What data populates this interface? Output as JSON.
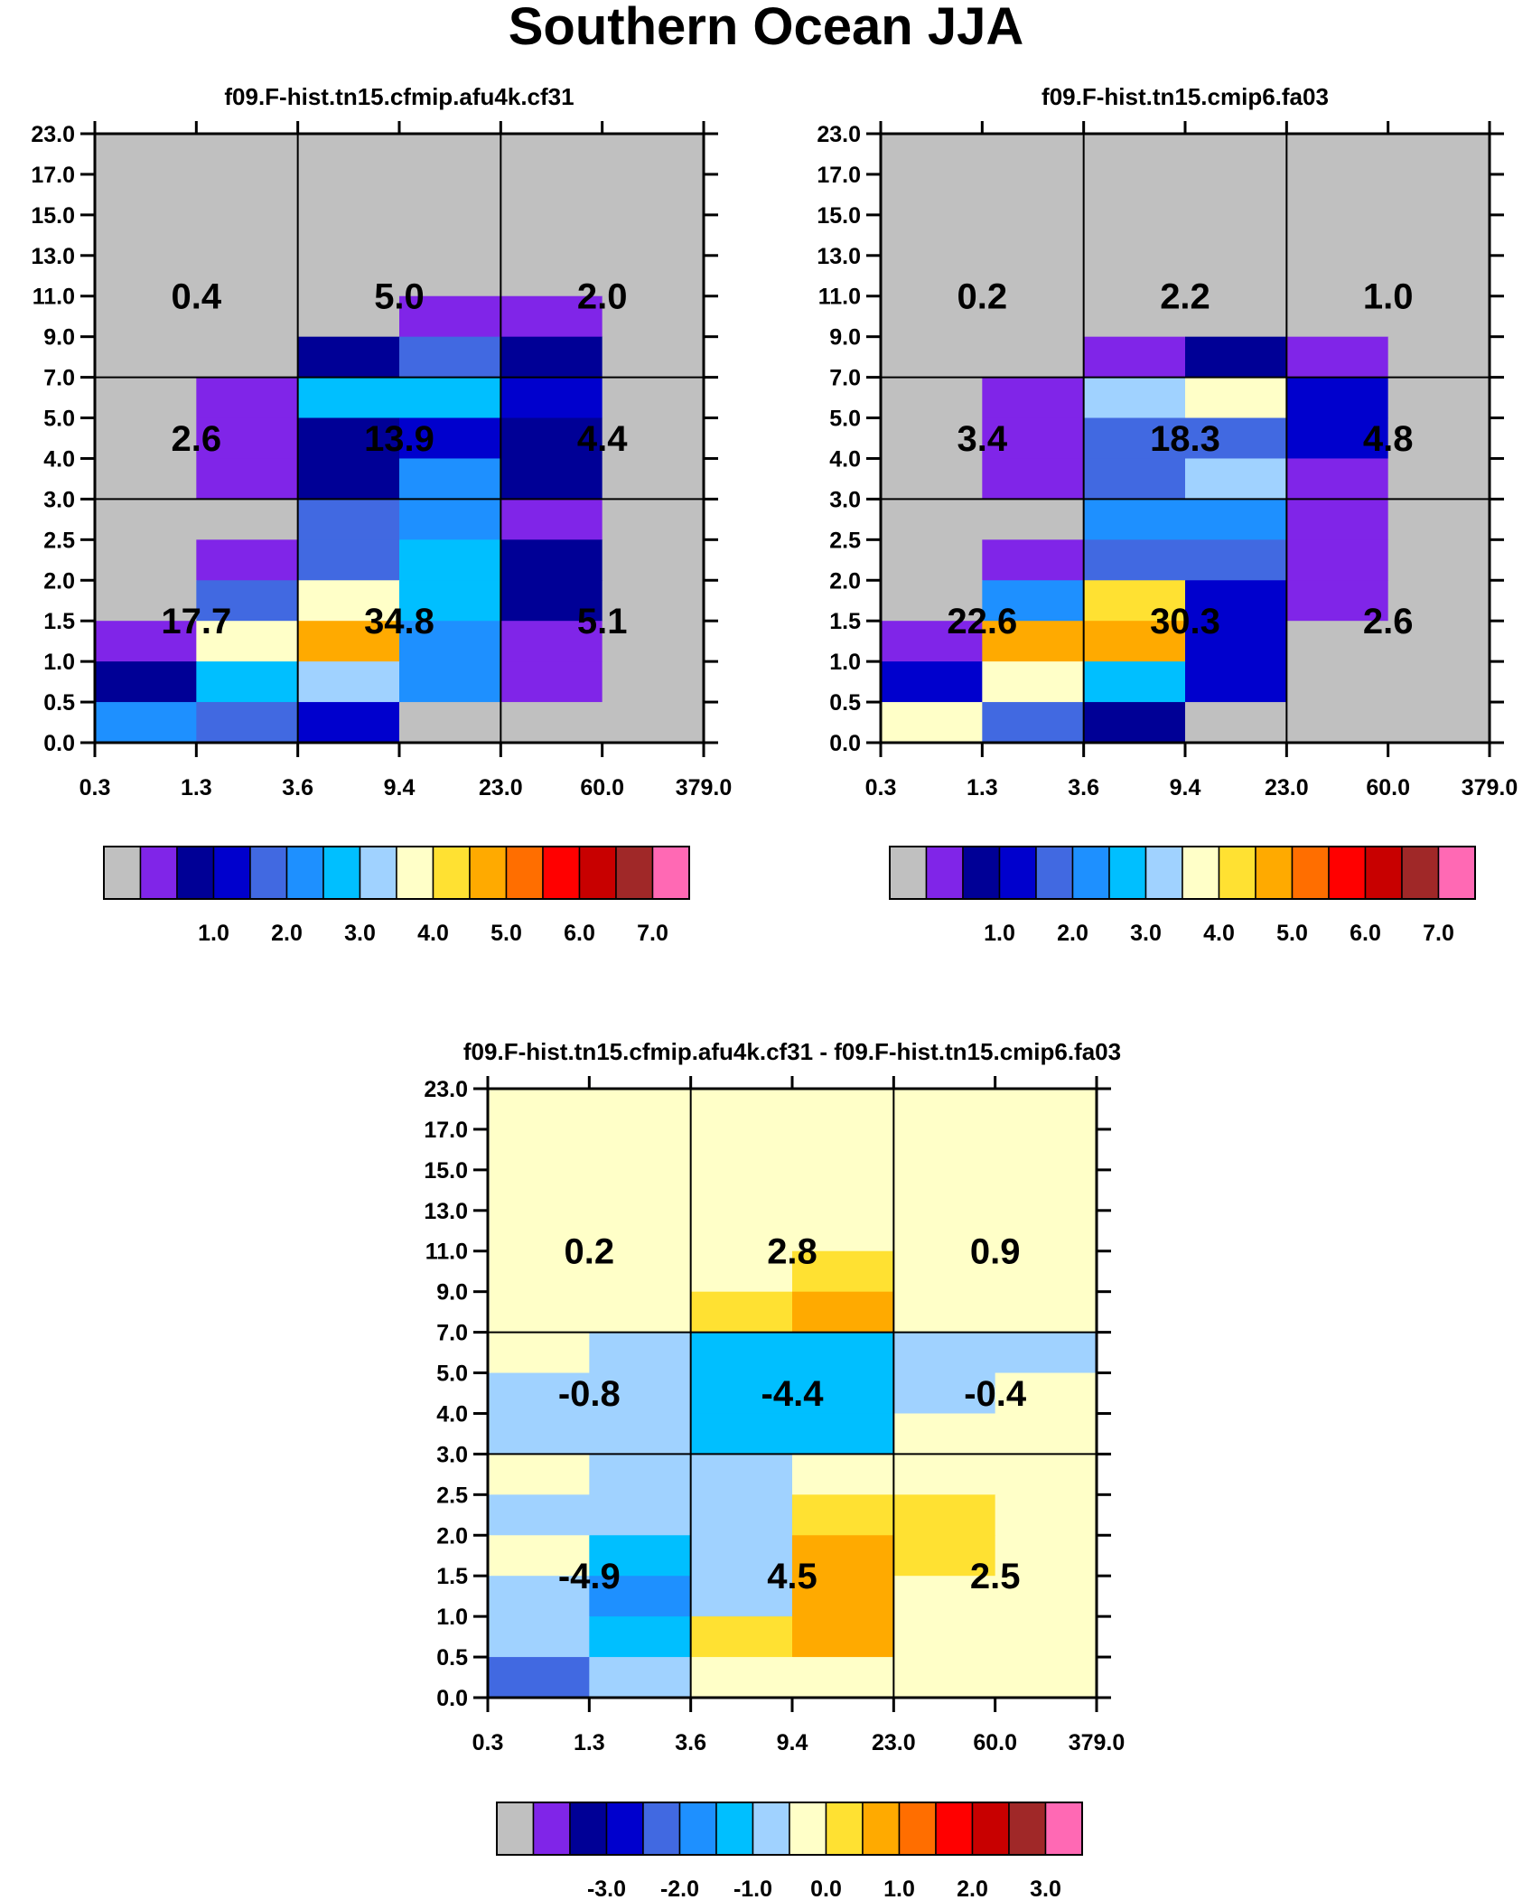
{
  "title": "Southern Ocean JJA",
  "x_ticks": [
    "0.3",
    "1.3",
    "3.6",
    "9.4",
    "23.0",
    "60.0",
    "379.0"
  ],
  "y_ticks": [
    "0.0",
    "0.5",
    "1.0",
    "1.5",
    "2.0",
    "2.5",
    "3.0",
    "4.0",
    "5.0",
    "7.0",
    "9.0",
    "11.0",
    "13.0",
    "15.0",
    "17.0",
    "23.0"
  ],
  "palette": [
    "#c0c0c0",
    "#8025e8",
    "#000096",
    "#0000cd",
    "#4169e1",
    "#1e90ff",
    "#00bfff",
    "#a0d2ff",
    "#ffffc8",
    "#ffe132",
    "#ffaa00",
    "#ff6e00",
    "#ff0000",
    "#c80000",
    "#a02828",
    "#ff69b4"
  ],
  "chart_data": [
    {
      "type": "heatmap",
      "title": "f09.F-hist.tn15.cfmip.afu4k.cf31",
      "xlabel": "",
      "ylabel": "",
      "colorbar_labels": [
        "1.0",
        "2.0",
        "3.0",
        "4.0",
        "5.0",
        "6.0",
        "7.0"
      ],
      "grid_color_index_rows_top_to_bottom": [
        [
          0,
          0,
          0,
          0,
          0,
          0
        ],
        [
          0,
          0,
          0,
          0,
          0,
          0
        ],
        [
          0,
          0,
          0,
          0,
          0,
          0
        ],
        [
          0,
          0,
          0,
          0,
          0,
          0
        ],
        [
          0,
          0,
          0,
          1,
          1,
          0
        ],
        [
          0,
          0,
          2,
          4,
          2,
          0
        ],
        [
          0,
          1,
          6,
          6,
          3,
          0
        ],
        [
          0,
          1,
          2,
          3,
          2,
          0
        ],
        [
          0,
          1,
          2,
          5,
          2,
          0
        ],
        [
          0,
          0,
          4,
          5,
          1,
          0
        ],
        [
          0,
          1,
          4,
          6,
          2,
          0
        ],
        [
          0,
          4,
          8,
          6,
          2,
          0
        ],
        [
          1,
          8,
          10,
          5,
          1,
          0
        ],
        [
          2,
          6,
          7,
          5,
          1,
          0
        ],
        [
          5,
          4,
          3,
          0,
          0,
          0
        ]
      ],
      "regions": [
        {
          "label": "0.4"
        },
        {
          "label": "5.0"
        },
        {
          "label": "2.0"
        },
        {
          "label": "2.6"
        },
        {
          "label": "13.9"
        },
        {
          "label": "4.4"
        },
        {
          "label": "17.7"
        },
        {
          "label": "34.8"
        },
        {
          "label": "5.1"
        }
      ]
    },
    {
      "type": "heatmap",
      "title": "f09.F-hist.tn15.cmip6.fa03",
      "xlabel": "",
      "ylabel": "",
      "colorbar_labels": [
        "1.0",
        "2.0",
        "3.0",
        "4.0",
        "5.0",
        "6.0",
        "7.0"
      ],
      "grid_color_index_rows_top_to_bottom": [
        [
          0,
          0,
          0,
          0,
          0,
          0
        ],
        [
          0,
          0,
          0,
          0,
          0,
          0
        ],
        [
          0,
          0,
          0,
          0,
          0,
          0
        ],
        [
          0,
          0,
          0,
          0,
          0,
          0
        ],
        [
          0,
          0,
          0,
          0,
          0,
          0
        ],
        [
          0,
          0,
          1,
          2,
          1,
          0
        ],
        [
          0,
          1,
          7,
          8,
          3,
          0
        ],
        [
          0,
          1,
          4,
          4,
          3,
          0
        ],
        [
          0,
          1,
          4,
          7,
          1,
          0
        ],
        [
          0,
          0,
          5,
          5,
          1,
          0
        ],
        [
          0,
          1,
          4,
          4,
          1,
          0
        ],
        [
          0,
          5,
          9,
          3,
          1,
          0
        ],
        [
          1,
          10,
          10,
          3,
          0,
          0
        ],
        [
          3,
          8,
          6,
          3,
          0,
          0
        ],
        [
          8,
          4,
          2,
          0,
          0,
          0
        ]
      ],
      "regions": [
        {
          "label": "0.2"
        },
        {
          "label": "2.2"
        },
        {
          "label": "1.0"
        },
        {
          "label": "3.4"
        },
        {
          "label": "18.3"
        },
        {
          "label": "4.8"
        },
        {
          "label": "22.6"
        },
        {
          "label": "30.3"
        },
        {
          "label": "2.6"
        }
      ]
    },
    {
      "type": "heatmap",
      "title": "f09.F-hist.tn15.cfmip.afu4k.cf31 - f09.F-hist.tn15.cmip6.fa03",
      "xlabel": "",
      "ylabel": "",
      "colorbar_labels": [
        "-3.0",
        "-2.0",
        "-1.0",
        "0.0",
        "1.0",
        "2.0",
        "3.0"
      ],
      "grid_color_index_rows_top_to_bottom": [
        [
          8,
          8,
          8,
          8,
          8,
          8
        ],
        [
          8,
          8,
          8,
          8,
          8,
          8
        ],
        [
          8,
          8,
          8,
          8,
          8,
          8
        ],
        [
          8,
          8,
          8,
          8,
          8,
          8
        ],
        [
          8,
          8,
          8,
          9,
          8,
          8
        ],
        [
          8,
          8,
          9,
          10,
          8,
          8
        ],
        [
          8,
          7,
          6,
          6,
          7,
          7
        ],
        [
          7,
          7,
          6,
          6,
          7,
          8
        ],
        [
          7,
          7,
          6,
          6,
          8,
          8
        ],
        [
          8,
          7,
          7,
          8,
          8,
          8
        ],
        [
          7,
          7,
          7,
          9,
          9,
          8
        ],
        [
          8,
          6,
          7,
          10,
          9,
          8
        ],
        [
          7,
          5,
          7,
          10,
          8,
          8
        ],
        [
          7,
          6,
          9,
          10,
          8,
          8
        ],
        [
          4,
          7,
          8,
          8,
          8,
          8
        ]
      ],
      "regions": [
        {
          "label": "0.2"
        },
        {
          "label": "2.8"
        },
        {
          "label": "0.9"
        },
        {
          "label": "-0.8"
        },
        {
          "label": "-4.4"
        },
        {
          "label": "-0.4"
        },
        {
          "label": "-4.9"
        },
        {
          "label": "4.5"
        },
        {
          "label": "2.5"
        }
      ]
    }
  ]
}
